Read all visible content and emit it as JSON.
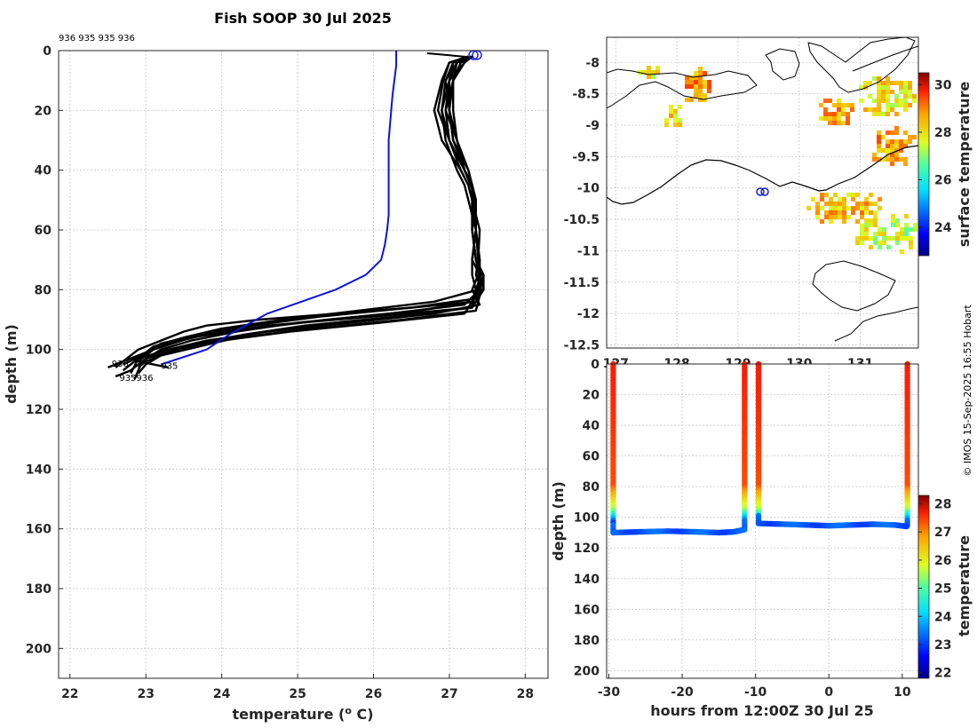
{
  "title": "Fish SOOP 30 Jul 2025",
  "credit": "© IMOS 15-Sep-2025 16:55 Hobart",
  "colors": {
    "profile_black": "#000000",
    "profile_blue": "#0a14d8",
    "frame": "#262626",
    "grid": "#c8c8c8",
    "coast": "#000000",
    "ship_marker": "#1a1ad8"
  },
  "chart_data": [
    {
      "id": "profiles",
      "type": "line",
      "xlabel": "temperature (",
      "xlabel_sup": "o",
      "xlabel_tail": " C)",
      "ylabel": "depth (m)",
      "xlim": [
        21.85,
        28.3
      ],
      "ylim": [
        210,
        0
      ],
      "xticks": [
        22,
        23,
        24,
        25,
        26,
        27,
        28
      ],
      "yticks": [
        0,
        20,
        40,
        60,
        80,
        100,
        120,
        140,
        160,
        180,
        200
      ],
      "cast_ids_top": "936 935 935 936",
      "bottom_labels": [
        {
          "text": "936",
          "t": 22.55,
          "d": 105.8
        },
        {
          "text": "935",
          "t": 23.2,
          "d": 106.5
        },
        {
          "text": "935936",
          "t": 22.65,
          "d": 110.5
        }
      ],
      "climatology": {
        "name": "climatology",
        "t": [
          26.3,
          26.3,
          26.25,
          26.2,
          26.2,
          26.2,
          26.2,
          26.18,
          26.15,
          26.1,
          25.9,
          25.5,
          24.6,
          24.1,
          23.8,
          23.2
        ],
        "d": [
          0,
          5,
          15,
          30,
          40,
          50,
          55,
          60,
          65,
          70,
          75,
          80,
          88,
          95,
          100,
          105
        ]
      },
      "series": [
        {
          "name": "cast-1",
          "t": [
            27.25,
            27.2,
            27.0,
            26.9,
            26.95,
            27.1,
            27.2,
            27.25,
            27.35,
            27.3,
            27.3,
            27.35,
            27.4,
            27.35,
            26.5,
            25.5,
            24.5,
            23.8,
            23.5,
            23.2,
            22.9,
            22.7,
            22.6
          ],
          "d": [
            2,
            4,
            10,
            20,
            30,
            40,
            45,
            50,
            60,
            70,
            75,
            80,
            82,
            84,
            86,
            88,
            90,
            92,
            94,
            97,
            100,
            104,
            106
          ]
        },
        {
          "name": "cast-2",
          "t": [
            27.3,
            27.1,
            26.95,
            27.0,
            27.05,
            27.2,
            27.3,
            27.3,
            27.35,
            27.4,
            27.4,
            27.38,
            26.8,
            25.8,
            24.8,
            24.0,
            23.5,
            23.1,
            22.9,
            22.8
          ],
          "d": [
            2,
            4,
            10,
            20,
            30,
            40,
            45,
            50,
            60,
            70,
            75,
            80,
            84,
            87,
            90,
            93,
            96,
            99,
            103,
            108
          ]
        },
        {
          "name": "cast-3",
          "t": [
            27.25,
            27.0,
            26.9,
            26.8,
            26.9,
            27.15,
            27.25,
            27.3,
            27.3,
            27.35,
            27.4,
            27.4,
            27.2,
            26.2,
            25.0,
            24.2,
            23.6,
            23.2,
            22.95,
            22.85
          ],
          "d": [
            2,
            4,
            10,
            20,
            30,
            40,
            45,
            50,
            60,
            70,
            75,
            80,
            85,
            88,
            91,
            94,
            97,
            100,
            104,
            110
          ]
        },
        {
          "name": "cast-4",
          "t": [
            27.3,
            27.05,
            27.0,
            26.95,
            27.1,
            27.2,
            27.3,
            27.35,
            27.3,
            27.35,
            27.45,
            27.45,
            27.3,
            26.0,
            24.6,
            23.8,
            23.3,
            23.0,
            22.5
          ],
          "d": [
            2,
            4,
            10,
            20,
            30,
            40,
            45,
            50,
            60,
            70,
            75,
            80,
            86,
            89,
            92,
            95,
            98,
            101,
            106
          ]
        },
        {
          "name": "cast-5",
          "t": [
            27.28,
            27.1,
            27.05,
            27.0,
            27.05,
            27.25,
            27.3,
            27.3,
            27.4,
            27.38,
            27.35,
            27.42,
            27.35,
            26.4,
            25.2,
            24.2,
            23.7,
            23.2,
            23.0,
            22.9
          ],
          "d": [
            2,
            4,
            10,
            20,
            30,
            40,
            45,
            50,
            60,
            70,
            75,
            80,
            87,
            90,
            93,
            96,
            99,
            102,
            105,
            108
          ]
        },
        {
          "name": "cast-6",
          "t": [
            27.3,
            27.15,
            27.05,
            26.95,
            27.0,
            27.2,
            27.28,
            27.35,
            27.35,
            27.3,
            27.4,
            27.38,
            27.3,
            26.6,
            25.4,
            24.4,
            23.6,
            23.1,
            22.9,
            23.3
          ],
          "d": [
            2,
            4,
            10,
            20,
            30,
            40,
            45,
            50,
            60,
            70,
            75,
            80,
            84,
            87,
            90,
            93,
            96,
            100,
            104,
            106
          ]
        },
        {
          "name": "cast-7",
          "t": [
            27.32,
            27.1,
            27.0,
            27.0,
            27.1,
            27.2,
            27.3,
            27.3,
            27.3,
            27.35,
            27.45,
            27.4,
            27.2,
            26.1,
            24.9,
            24.0,
            23.4,
            23.0,
            22.8,
            22.6
          ],
          "d": [
            2,
            4,
            10,
            20,
            30,
            40,
            45,
            50,
            60,
            70,
            75,
            80,
            88,
            91,
            94,
            97,
            100,
            103,
            107,
            109
          ]
        },
        {
          "name": "cast-8",
          "t": [
            27.28,
            27.05,
            26.95,
            26.9,
            27.0,
            27.15,
            27.25,
            27.3,
            27.35,
            27.4,
            27.38,
            27.3,
            27.4,
            26.8,
            25.7,
            24.6,
            23.8,
            23.3,
            22.9,
            22.7
          ],
          "d": [
            2,
            4,
            10,
            20,
            30,
            40,
            45,
            50,
            60,
            70,
            75,
            80,
            85,
            88,
            91,
            94,
            97,
            100,
            103,
            107
          ]
        },
        {
          "name": "cast-9",
          "t": [
            27.3,
            27.2,
            27.05,
            27.05,
            27.1,
            27.25,
            27.3,
            27.35,
            27.35,
            27.38,
            27.42,
            27.35,
            27.3,
            26.3,
            25.1,
            24.3,
            23.7,
            23.3,
            23.0,
            22.9
          ],
          "d": [
            2,
            4,
            10,
            20,
            30,
            40,
            45,
            50,
            60,
            70,
            75,
            80,
            86,
            89,
            92,
            95,
            98,
            101,
            104,
            106
          ]
        },
        {
          "name": "cast-10",
          "t": [
            27.25,
            27.0,
            26.92,
            26.85,
            27.0,
            27.2,
            27.3,
            27.32,
            27.3,
            27.35,
            27.4,
            27.45,
            27.35,
            26.5,
            25.3,
            24.4,
            23.7,
            23.2,
            22.95,
            22.7
          ],
          "d": [
            2,
            4,
            10,
            20,
            30,
            40,
            45,
            50,
            60,
            70,
            75,
            80,
            83,
            86,
            89,
            92,
            95,
            98,
            102,
            105
          ]
        }
      ]
    },
    {
      "id": "map",
      "type": "heatmap",
      "colorbar_label": "surface temperature",
      "colorbar_ticks": [
        24,
        26,
        28,
        30
      ],
      "clim": [
        22.8,
        30.5
      ],
      "xlim": [
        126.85,
        131.95
      ],
      "ylim": [
        -12.55,
        -7.6
      ],
      "xticks": [
        127,
        128,
        129,
        130,
        131
      ],
      "xtick_labels": [
        "127",
        "128",
        "129",
        "130",
        "131"
      ],
      "yticks": [
        -8,
        -8.5,
        -9,
        -9.5,
        -10,
        -10.5,
        -11,
        -11.5,
        -12,
        -12.5
      ],
      "ytick_labels": [
        "-8",
        "-8.5",
        "-9",
        "-9.5",
        "-10",
        "-10.5",
        "-11",
        "-11.5",
        "-12",
        "-12.5"
      ],
      "ship_positions": [
        [
          129.35,
          -10.05
        ],
        [
          129.42,
          -10.05
        ]
      ],
      "sst_patches": [
        {
          "lon": 127.5,
          "lat": -8.1,
          "rlon": 0.22,
          "rlat": 0.12,
          "temp": 27.9
        },
        {
          "lon": 128.3,
          "lat": -8.35,
          "rlon": 0.25,
          "rlat": 0.35,
          "temp": 28.8
        },
        {
          "lon": 127.9,
          "lat": -8.8,
          "rlon": 0.18,
          "rlat": 0.2,
          "temp": 28.2
        },
        {
          "lon": 130.6,
          "lat": -8.75,
          "rlon": 0.35,
          "rlat": 0.25,
          "temp": 28.5
        },
        {
          "lon": 131.4,
          "lat": -8.5,
          "rlon": 0.5,
          "rlat": 0.35,
          "temp": 28.0
        },
        {
          "lon": 131.5,
          "lat": -9.3,
          "rlon": 0.45,
          "rlat": 0.35,
          "temp": 28.6
        },
        {
          "lon": 130.75,
          "lat": -10.3,
          "rlon": 0.7,
          "rlat": 0.3,
          "temp": 28.3
        },
        {
          "lon": 131.4,
          "lat": -10.7,
          "rlon": 0.55,
          "rlat": 0.35,
          "temp": 27.6
        }
      ]
    },
    {
      "id": "timeseries",
      "type": "scatter",
      "xlabel": "hours from 12:00Z 30 Jul 25",
      "ylabel": "depth (m)",
      "colorbar_label": "temperature",
      "colorbar_ticks": [
        22,
        23,
        24,
        25,
        26,
        27,
        28
      ],
      "clim": [
        21.8,
        28.3
      ],
      "xlim": [
        -30.3,
        12.2
      ],
      "ylim": [
        205,
        0
      ],
      "xticks": [
        -30,
        -20,
        -10,
        0,
        10
      ],
      "yticks": [
        0,
        20,
        40,
        60,
        80,
        100,
        120,
        140,
        160,
        180,
        200
      ],
      "casts": [
        {
          "name": "cast-a",
          "x": -29.4,
          "bottom": 110
        },
        {
          "name": "cast-b",
          "x": -11.5,
          "bottom": 108
        },
        {
          "name": "cast-c",
          "x": -9.6,
          "bottom": 104
        },
        {
          "name": "cast-d",
          "x": 10.7,
          "bottom": 106
        }
      ],
      "bottom_tracks": [
        {
          "x": [
            -29.4,
            -26,
            -22,
            -18,
            -15,
            -13,
            -11.5
          ],
          "d": [
            110,
            109.5,
            109,
            109.5,
            110,
            109.5,
            108
          ]
        },
        {
          "x": [
            -9.6,
            -6,
            -3,
            0,
            3,
            6,
            9,
            10.7
          ],
          "d": [
            104,
            104.5,
            105,
            105.5,
            105,
            104.5,
            105,
            106
          ]
        }
      ]
    }
  ]
}
